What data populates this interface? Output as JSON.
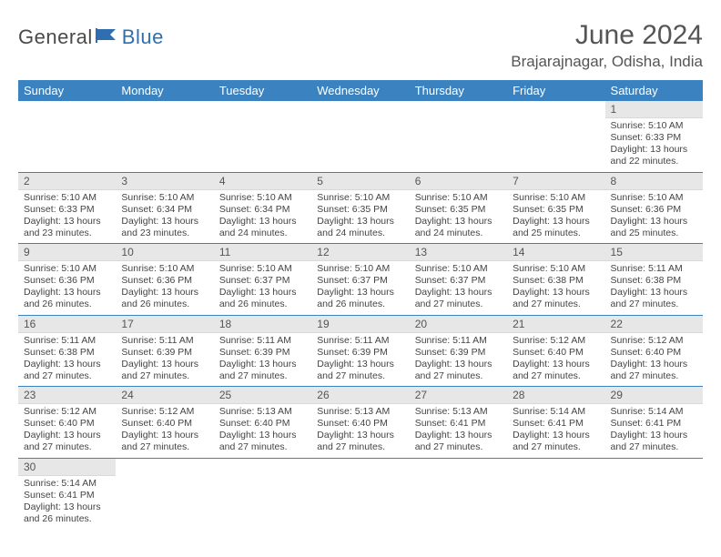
{
  "brand": {
    "part1": "General",
    "part2": "Blue"
  },
  "title": "June 2024",
  "location": "Brajarajnagar, Odisha, India",
  "colors": {
    "header_bg": "#3b83c0",
    "header_text": "#ffffff",
    "daynum_bg": "#e7e7e7",
    "cell_border": "#3b83c0",
    "brand_gray": "#4a4a4a",
    "brand_blue": "#2f6fb0"
  },
  "dow": [
    "Sunday",
    "Monday",
    "Tuesday",
    "Wednesday",
    "Thursday",
    "Friday",
    "Saturday"
  ],
  "weeks": [
    [
      null,
      null,
      null,
      null,
      null,
      null,
      {
        "n": "1",
        "sr": "5:10 AM",
        "ss": "6:33 PM",
        "dl": "13 hours and 22 minutes."
      }
    ],
    [
      {
        "n": "2",
        "sr": "5:10 AM",
        "ss": "6:33 PM",
        "dl": "13 hours and 23 minutes."
      },
      {
        "n": "3",
        "sr": "5:10 AM",
        "ss": "6:34 PM",
        "dl": "13 hours and 23 minutes."
      },
      {
        "n": "4",
        "sr": "5:10 AM",
        "ss": "6:34 PM",
        "dl": "13 hours and 24 minutes."
      },
      {
        "n": "5",
        "sr": "5:10 AM",
        "ss": "6:35 PM",
        "dl": "13 hours and 24 minutes."
      },
      {
        "n": "6",
        "sr": "5:10 AM",
        "ss": "6:35 PM",
        "dl": "13 hours and 24 minutes."
      },
      {
        "n": "7",
        "sr": "5:10 AM",
        "ss": "6:35 PM",
        "dl": "13 hours and 25 minutes."
      },
      {
        "n": "8",
        "sr": "5:10 AM",
        "ss": "6:36 PM",
        "dl": "13 hours and 25 minutes."
      }
    ],
    [
      {
        "n": "9",
        "sr": "5:10 AM",
        "ss": "6:36 PM",
        "dl": "13 hours and 26 minutes."
      },
      {
        "n": "10",
        "sr": "5:10 AM",
        "ss": "6:36 PM",
        "dl": "13 hours and 26 minutes."
      },
      {
        "n": "11",
        "sr": "5:10 AM",
        "ss": "6:37 PM",
        "dl": "13 hours and 26 minutes."
      },
      {
        "n": "12",
        "sr": "5:10 AM",
        "ss": "6:37 PM",
        "dl": "13 hours and 26 minutes."
      },
      {
        "n": "13",
        "sr": "5:10 AM",
        "ss": "6:37 PM",
        "dl": "13 hours and 27 minutes."
      },
      {
        "n": "14",
        "sr": "5:10 AM",
        "ss": "6:38 PM",
        "dl": "13 hours and 27 minutes."
      },
      {
        "n": "15",
        "sr": "5:11 AM",
        "ss": "6:38 PM",
        "dl": "13 hours and 27 minutes."
      }
    ],
    [
      {
        "n": "16",
        "sr": "5:11 AM",
        "ss": "6:38 PM",
        "dl": "13 hours and 27 minutes."
      },
      {
        "n": "17",
        "sr": "5:11 AM",
        "ss": "6:39 PM",
        "dl": "13 hours and 27 minutes."
      },
      {
        "n": "18",
        "sr": "5:11 AM",
        "ss": "6:39 PM",
        "dl": "13 hours and 27 minutes."
      },
      {
        "n": "19",
        "sr": "5:11 AM",
        "ss": "6:39 PM",
        "dl": "13 hours and 27 minutes."
      },
      {
        "n": "20",
        "sr": "5:11 AM",
        "ss": "6:39 PM",
        "dl": "13 hours and 27 minutes."
      },
      {
        "n": "21",
        "sr": "5:12 AM",
        "ss": "6:40 PM",
        "dl": "13 hours and 27 minutes."
      },
      {
        "n": "22",
        "sr": "5:12 AM",
        "ss": "6:40 PM",
        "dl": "13 hours and 27 minutes."
      }
    ],
    [
      {
        "n": "23",
        "sr": "5:12 AM",
        "ss": "6:40 PM",
        "dl": "13 hours and 27 minutes."
      },
      {
        "n": "24",
        "sr": "5:12 AM",
        "ss": "6:40 PM",
        "dl": "13 hours and 27 minutes."
      },
      {
        "n": "25",
        "sr": "5:13 AM",
        "ss": "6:40 PM",
        "dl": "13 hours and 27 minutes."
      },
      {
        "n": "26",
        "sr": "5:13 AM",
        "ss": "6:40 PM",
        "dl": "13 hours and 27 minutes."
      },
      {
        "n": "27",
        "sr": "5:13 AM",
        "ss": "6:41 PM",
        "dl": "13 hours and 27 minutes."
      },
      {
        "n": "28",
        "sr": "5:14 AM",
        "ss": "6:41 PM",
        "dl": "13 hours and 27 minutes."
      },
      {
        "n": "29",
        "sr": "5:14 AM",
        "ss": "6:41 PM",
        "dl": "13 hours and 27 minutes."
      }
    ],
    [
      {
        "n": "30",
        "sr": "5:14 AM",
        "ss": "6:41 PM",
        "dl": "13 hours and 26 minutes."
      },
      null,
      null,
      null,
      null,
      null,
      null
    ]
  ],
  "labels": {
    "sunrise": "Sunrise:",
    "sunset": "Sunset:",
    "daylight": "Daylight:"
  }
}
